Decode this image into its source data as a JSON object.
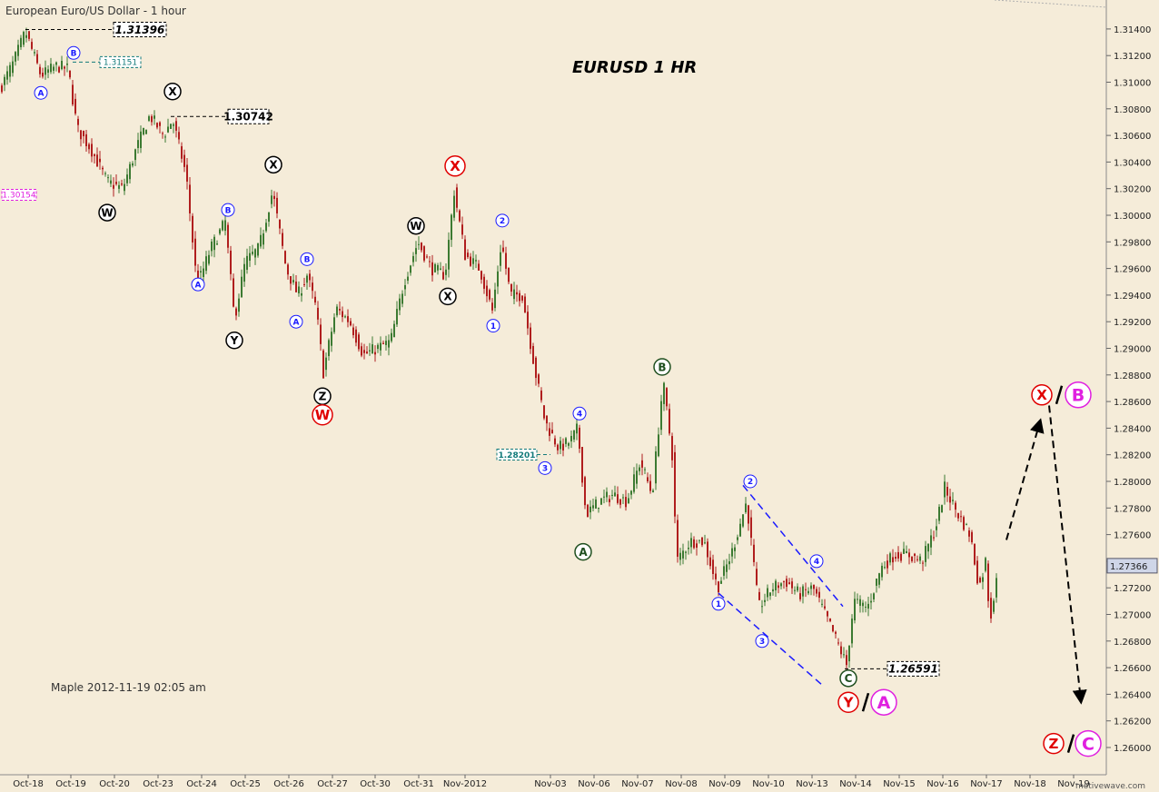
{
  "chart_data": {
    "type": "candlestick",
    "title": "European Euro/US Dollar - 1 hour",
    "subtitle": "EURUSD  1 HR",
    "footer": "Maple  2012-11-19  02:05 am",
    "watermark": "motivewave.com",
    "ylim": [
      1.2595,
      1.316
    ],
    "y_ticks": [
      "1.26000",
      "1.26200",
      "1.26400",
      "1.26600",
      "1.26800",
      "1.27000",
      "1.27200",
      "1.27400",
      "1.27600",
      "1.27800",
      "1.28000",
      "1.28200",
      "1.28400",
      "1.28600",
      "1.28800",
      "1.29000",
      "1.29200",
      "1.29400",
      "1.29600",
      "1.29800",
      "1.30000",
      "1.30200",
      "1.30400",
      "1.30600",
      "1.30800",
      "1.31000",
      "1.31200",
      "1.31400"
    ],
    "x_ticks": [
      "Oct-18",
      "Oct-19",
      "Oct-20",
      "Oct-23",
      "Oct-24",
      "Oct-25",
      "Oct-26",
      "Oct-27",
      "Oct-30",
      "Oct-31",
      "Nov-2012",
      "Nov-03",
      "Nov-06",
      "Nov-07",
      "Nov-08",
      "Nov-09",
      "Nov-10",
      "Nov-13",
      "Nov-14",
      "Nov-15",
      "Nov-16",
      "Nov-17",
      "Nov-18",
      "Nov-19"
    ],
    "current_price": "1.27366",
    "price_labels": [
      {
        "text": "1.31396",
        "value": 1.31396,
        "style": "black"
      },
      {
        "text": "1.31151",
        "value": 1.31151,
        "style": "teal"
      },
      {
        "text": "1.30742",
        "value": 1.30742,
        "style": "black"
      },
      {
        "text": "1.30154",
        "value": 1.30154,
        "style": "magenta"
      },
      {
        "text": "1.28201",
        "value": 1.28201,
        "style": "teal"
      },
      {
        "text": "1.26591",
        "value": 1.26591,
        "style": "black"
      }
    ],
    "price_path": [
      {
        "x": 0,
        "y": 1.3095
      },
      {
        "x": 15,
        "y": 1.3115
      },
      {
        "x": 28,
        "y": 1.3138
      },
      {
        "x": 45,
        "y": 1.3105
      },
      {
        "x": 62,
        "y": 1.3112
      },
      {
        "x": 75,
        "y": 1.311
      },
      {
        "x": 85,
        "y": 1.3065
      },
      {
        "x": 100,
        "y": 1.305
      },
      {
        "x": 118,
        "y": 1.3025
      },
      {
        "x": 135,
        "y": 1.302
      },
      {
        "x": 150,
        "y": 1.305
      },
      {
        "x": 165,
        "y": 1.3075
      },
      {
        "x": 180,
        "y": 1.306
      },
      {
        "x": 190,
        "y": 1.3072
      },
      {
        "x": 205,
        "y": 1.303
      },
      {
        "x": 215,
        "y": 1.296
      },
      {
        "x": 220,
        "y": 1.2952
      },
      {
        "x": 232,
        "y": 1.2975
      },
      {
        "x": 248,
        "y": 1.2995
      },
      {
        "x": 258,
        "y": 1.2922
      },
      {
        "x": 270,
        "y": 1.2965
      },
      {
        "x": 285,
        "y": 1.2975
      },
      {
        "x": 300,
        "y": 1.3018
      },
      {
        "x": 315,
        "y": 1.296
      },
      {
        "x": 328,
        "y": 1.294
      },
      {
        "x": 338,
        "y": 1.2955
      },
      {
        "x": 348,
        "y": 1.293
      },
      {
        "x": 356,
        "y": 1.2882
      },
      {
        "x": 370,
        "y": 1.293
      },
      {
        "x": 385,
        "y": 1.292
      },
      {
        "x": 400,
        "y": 1.2895
      },
      {
        "x": 415,
        "y": 1.29
      },
      {
        "x": 430,
        "y": 1.2905
      },
      {
        "x": 445,
        "y": 1.295
      },
      {
        "x": 460,
        "y": 1.298
      },
      {
        "x": 475,
        "y": 1.296
      },
      {
        "x": 490,
        "y": 1.2955
      },
      {
        "x": 500,
        "y": 1.3018
      },
      {
        "x": 512,
        "y": 1.297
      },
      {
        "x": 528,
        "y": 1.296
      },
      {
        "x": 542,
        "y": 1.2928
      },
      {
        "x": 552,
        "y": 1.298
      },
      {
        "x": 562,
        "y": 1.294
      },
      {
        "x": 575,
        "y": 1.294
      },
      {
        "x": 590,
        "y": 1.288
      },
      {
        "x": 600,
        "y": 1.2845
      },
      {
        "x": 615,
        "y": 1.2825
      },
      {
        "x": 628,
        "y": 1.283
      },
      {
        "x": 636,
        "y": 1.284
      },
      {
        "x": 645,
        "y": 1.2775
      },
      {
        "x": 660,
        "y": 1.2785
      },
      {
        "x": 675,
        "y": 1.279
      },
      {
        "x": 690,
        "y": 1.2785
      },
      {
        "x": 705,
        "y": 1.2815
      },
      {
        "x": 718,
        "y": 1.279
      },
      {
        "x": 730,
        "y": 1.2875
      },
      {
        "x": 740,
        "y": 1.282
      },
      {
        "x": 745,
        "y": 1.274
      },
      {
        "x": 760,
        "y": 1.2755
      },
      {
        "x": 775,
        "y": 1.2755
      },
      {
        "x": 790,
        "y": 1.272
      },
      {
        "x": 805,
        "y": 1.2745
      },
      {
        "x": 822,
        "y": 1.2785
      },
      {
        "x": 835,
        "y": 1.2705
      },
      {
        "x": 850,
        "y": 1.272
      },
      {
        "x": 865,
        "y": 1.2725
      },
      {
        "x": 880,
        "y": 1.2715
      },
      {
        "x": 895,
        "y": 1.272
      },
      {
        "x": 915,
        "y": 1.269
      },
      {
        "x": 932,
        "y": 1.2662
      },
      {
        "x": 940,
        "y": 1.271
      },
      {
        "x": 955,
        "y": 1.2705
      },
      {
        "x": 970,
        "y": 1.2735
      },
      {
        "x": 985,
        "y": 1.2745
      },
      {
        "x": 1000,
        "y": 1.2745
      },
      {
        "x": 1015,
        "y": 1.274
      },
      {
        "x": 1030,
        "y": 1.2765
      },
      {
        "x": 1040,
        "y": 1.2795
      },
      {
        "x": 1055,
        "y": 1.2775
      },
      {
        "x": 1068,
        "y": 1.276
      },
      {
        "x": 1078,
        "y": 1.272
      },
      {
        "x": 1085,
        "y": 1.274
      },
      {
        "x": 1090,
        "y": 1.2695
      },
      {
        "x": 1098,
        "y": 1.2734
      }
    ],
    "projection": [
      {
        "x": 1108,
        "y": 1.2756
      },
      {
        "x": 1145,
        "y": 1.2845
      },
      {
        "x": 1155,
        "y": 1.2857
      },
      {
        "x": 1190,
        "y": 1.2635
      }
    ],
    "wave_labels": [
      {
        "text": "B",
        "x": 81,
        "y": 1.3122,
        "color": "blue",
        "size": "small"
      },
      {
        "text": "A",
        "x": 45,
        "y": 1.3092,
        "color": "blue",
        "size": "small"
      },
      {
        "text": "X",
        "x": 190,
        "y": 1.3093,
        "color": "black",
        "size": "medium"
      },
      {
        "text": "W",
        "x": 118,
        "y": 1.3002,
        "color": "black",
        "size": "medium"
      },
      {
        "text": "B",
        "x": 251,
        "y": 1.3004,
        "color": "blue",
        "size": "small"
      },
      {
        "text": "A",
        "x": 218,
        "y": 1.2948,
        "color": "blue",
        "size": "small"
      },
      {
        "text": "X",
        "x": 301,
        "y": 1.3038,
        "color": "black",
        "size": "medium"
      },
      {
        "text": "Y",
        "x": 258,
        "y": 1.2906,
        "color": "black",
        "size": "medium"
      },
      {
        "text": "B",
        "x": 338,
        "y": 1.2967,
        "color": "blue",
        "size": "small"
      },
      {
        "text": "A",
        "x": 326,
        "y": 1.292,
        "color": "blue",
        "size": "small"
      },
      {
        "text": "Z",
        "x": 355,
        "y": 1.2864,
        "color": "black",
        "size": "medium"
      },
      {
        "text": "W",
        "x": 355,
        "y": 1.285,
        "color": "red",
        "size": "large"
      },
      {
        "text": "X",
        "x": 501,
        "y": 1.3037,
        "color": "red",
        "size": "large"
      },
      {
        "text": "W",
        "x": 458,
        "y": 1.2992,
        "color": "black",
        "size": "medium"
      },
      {
        "text": "X",
        "x": 493,
        "y": 1.2939,
        "color": "black",
        "size": "medium"
      },
      {
        "text": "2",
        "x": 553,
        "y": 1.2996,
        "color": "blue",
        "size": "small"
      },
      {
        "text": "1",
        "x": 543,
        "y": 1.2917,
        "color": "blue",
        "size": "small"
      },
      {
        "text": "4",
        "x": 638,
        "y": 1.2851,
        "color": "blue",
        "size": "small"
      },
      {
        "text": "3",
        "x": 600,
        "y": 1.281,
        "color": "blue",
        "size": "small"
      },
      {
        "text": "A",
        "x": 642,
        "y": 1.2747,
        "color": "green",
        "size": "medium"
      },
      {
        "text": "B",
        "x": 729,
        "y": 1.2886,
        "color": "green",
        "size": "medium"
      },
      {
        "text": "2",
        "x": 826,
        "y": 1.28,
        "color": "blue",
        "size": "small"
      },
      {
        "text": "4",
        "x": 899,
        "y": 1.274,
        "color": "blue",
        "size": "small"
      },
      {
        "text": "1",
        "x": 791,
        "y": 1.2708,
        "color": "blue",
        "size": "small"
      },
      {
        "text": "3",
        "x": 839,
        "y": 1.268,
        "color": "blue",
        "size": "small"
      },
      {
        "text": "C",
        "x": 934,
        "y": 1.2652,
        "color": "green",
        "size": "medium"
      },
      {
        "text": "Y",
        "x": 934,
        "y": 1.2634,
        "color": "red",
        "size": "large"
      },
      {
        "text": "A",
        "x": 973,
        "y": 1.2634,
        "color": "magenta",
        "size": "xlarge"
      },
      {
        "text": "X",
        "x": 1147,
        "y": 1.2865,
        "color": "red",
        "size": "large"
      },
      {
        "text": "B",
        "x": 1187,
        "y": 1.2865,
        "color": "magenta",
        "size": "xlarge"
      },
      {
        "text": "Z",
        "x": 1160,
        "y": 1.2603,
        "color": "red",
        "size": "large"
      },
      {
        "text": "C",
        "x": 1198,
        "y": 1.2603,
        "color": "magenta",
        "size": "xlarge"
      }
    ],
    "colors": {
      "background": "#f5ecd9",
      "bull": "#3c7a32",
      "bear": "#b01e1e",
      "blue": "#1a1aff",
      "red": "#e00000",
      "magenta": "#e020e0",
      "green": "#1f4f1f",
      "teal": "#127a7a"
    }
  }
}
